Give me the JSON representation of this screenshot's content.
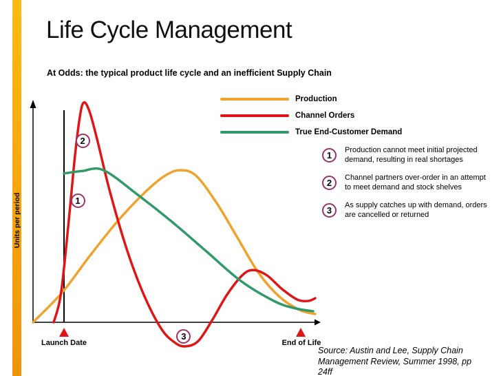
{
  "slide": {
    "title": "Life Cycle Management",
    "subtitle": "At Odds: the typical product life cycle and an inefficient Supply Chain",
    "source": "Source: Austin and Lee, Supply Chain Management Review, Summer 1998, pp 24ff"
  },
  "chart_data": {
    "type": "line",
    "title": "",
    "xlabel": "",
    "ylabel": "Units per period",
    "xlim": [
      0,
      100
    ],
    "ylim": [
      -15,
      105
    ],
    "grid": false,
    "legend_position": "top-right",
    "x_markers": [
      {
        "label": "Launch Date",
        "x": 10.8
      },
      {
        "label": "End of Life",
        "x": 93.3
      }
    ],
    "series": [
      {
        "name": "Production",
        "color": "#EFA32C",
        "points": [
          [
            0,
            0
          ],
          [
            10.1,
            13.3
          ],
          [
            19.7,
            29.7
          ],
          [
            29.3,
            45.2
          ],
          [
            38.8,
            58.2
          ],
          [
            46,
            65.9
          ],
          [
            51.3,
            68.4
          ],
          [
            56.8,
            65.9
          ],
          [
            64,
            53.6
          ],
          [
            71.2,
            38.1
          ],
          [
            78.4,
            22.6
          ],
          [
            85.6,
            11.8
          ],
          [
            92.8,
            5.6
          ],
          [
            98.3,
            3.7
          ]
        ]
      },
      {
        "name": "Channel Orders",
        "color": "#E01616",
        "points": [
          [
            7.2,
            0
          ],
          [
            9.6,
            11.8
          ],
          [
            12,
            39.6
          ],
          [
            14.4,
            72.1
          ],
          [
            16.3,
            92.3
          ],
          [
            17.7,
            98.8
          ],
          [
            19.7,
            94.7
          ],
          [
            22.5,
            81.4
          ],
          [
            26.9,
            58.2
          ],
          [
            32.9,
            31.9
          ],
          [
            38.8,
            11.8
          ],
          [
            44.8,
            -3.1
          ],
          [
            49.6,
            -9.3
          ],
          [
            53.2,
            -10.8
          ],
          [
            57.6,
            -8.4
          ],
          [
            62.4,
            0.9
          ],
          [
            67.6,
            12.4
          ],
          [
            72.9,
            21.1
          ],
          [
            76.7,
            23.5
          ],
          [
            81.5,
            21.1
          ],
          [
            86.8,
            14.9
          ],
          [
            92.1,
            10.2
          ],
          [
            95.9,
            9.6
          ],
          [
            98.3,
            10.8
          ]
        ]
      },
      {
        "name": "True End-Customer Demand",
        "color": "#309A68",
        "points": [
          [
            10.8,
            66.9
          ],
          [
            17,
            68
          ],
          [
            24.5,
            68.4
          ],
          [
            36.5,
            57.3
          ],
          [
            48.4,
            45.2
          ],
          [
            60.4,
            31.9
          ],
          [
            72.4,
            18.6
          ],
          [
            84.4,
            9.3
          ],
          [
            91.6,
            6.2
          ],
          [
            97.6,
            5
          ]
        ]
      }
    ],
    "point_labels": [
      {
        "label": "1",
        "x": 15.6,
        "y": 54.5
      },
      {
        "label": "2",
        "x": 17.3,
        "y": 81.7
      },
      {
        "label": "3",
        "x": 52.5,
        "y": -6.2
      }
    ],
    "accent_colors": {
      "number_circle": "#993366",
      "marker_triangle": "#E01616",
      "axis": "#000000",
      "side_bar_top": "#FDB913",
      "side_bar_bottom": "#F0940A"
    }
  },
  "annotations": [
    {
      "num": "1",
      "text": "Production cannot meet initial projected demand, resulting in real shortages"
    },
    {
      "num": "2",
      "text": "Channel partners over-order in an attempt to meet demand and stock shelves"
    },
    {
      "num": "3",
      "text": "As supply catches up with demand, orders are cancelled or returned"
    }
  ]
}
